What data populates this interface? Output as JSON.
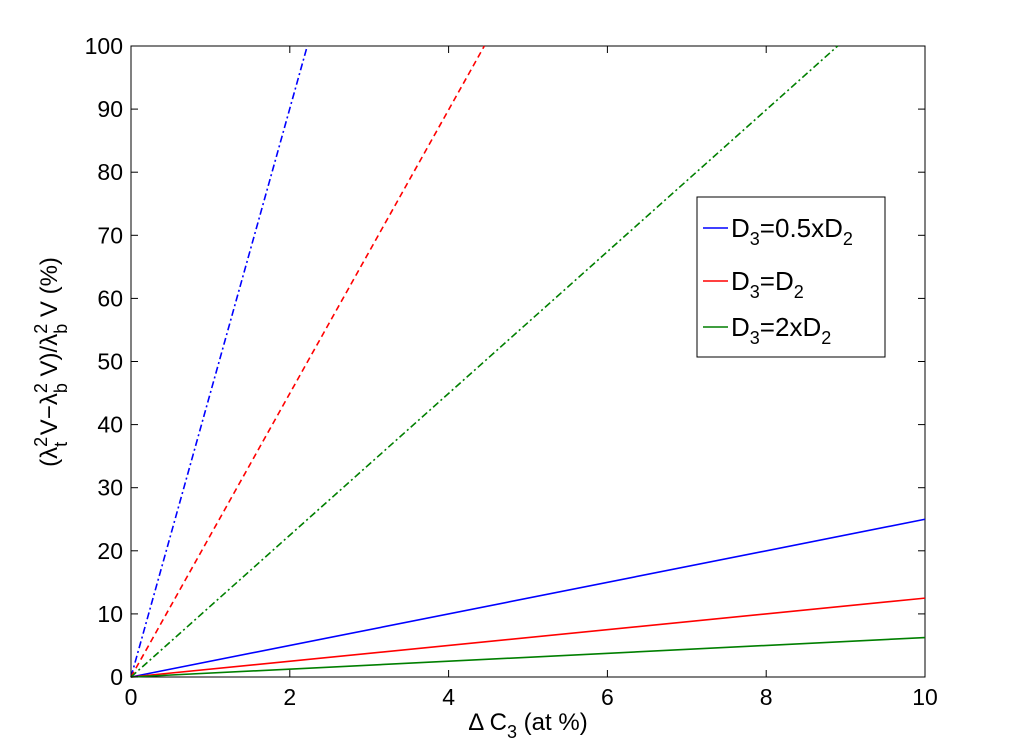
{
  "chart_data": {
    "type": "line",
    "xlabel": "Δ C3 (at %)",
    "ylabel": "(λt2 V−λb2 V)/λb2 V (%)",
    "xlim": [
      0,
      10
    ],
    "ylim": [
      0,
      100
    ],
    "x_ticks": [
      "0",
      "2",
      "4",
      "6",
      "8",
      "10"
    ],
    "y_ticks": [
      "0",
      "10",
      "20",
      "30",
      "40",
      "50",
      "60",
      "70",
      "80",
      "90",
      "100"
    ],
    "grid": false,
    "legend_position": "upper-right",
    "series": [
      {
        "name": "D3=0.5xD2",
        "color": "#0000ff",
        "style": "solid",
        "x": [
          0,
          10
        ],
        "y": [
          0,
          25
        ]
      },
      {
        "name": "D3=D2",
        "color": "#ff0000",
        "style": "solid",
        "x": [
          0,
          10
        ],
        "y": [
          0,
          12.5
        ]
      },
      {
        "name": "D3=2xD2",
        "color": "#007f00",
        "style": "solid",
        "x": [
          0,
          10
        ],
        "y": [
          0,
          6.25
        ]
      },
      {
        "color": "#0000ff",
        "style": "dashdot",
        "x": [
          0,
          2.22
        ],
        "y": [
          0,
          100
        ]
      },
      {
        "color": "#ff0000",
        "style": "dashed",
        "x": [
          0,
          4.45
        ],
        "y": [
          0,
          100
        ]
      },
      {
        "color": "#007f00",
        "style": "dashdot",
        "x": [
          0,
          8.9
        ],
        "y": [
          0,
          100
        ]
      }
    ]
  }
}
